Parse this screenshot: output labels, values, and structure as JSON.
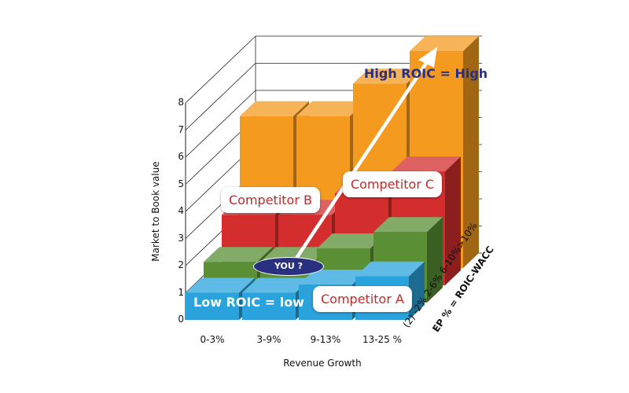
{
  "chart_data": {
    "type": "bar",
    "subtype": "3d-stacked-rows",
    "xlabel": "Revenue Growth",
    "ylabel": "Market to Book value",
    "zlabel": "EP % = ROIC-WACC",
    "categories": [
      "0-3%",
      "3-9%",
      "9-13%",
      "13-25 %"
    ],
    "depth_categories": [
      "(2) -2%",
      "2-6%",
      "6-10%",
      ">10%"
    ],
    "y_ticks": [
      "0",
      "1",
      "2",
      "3",
      "4",
      "5",
      "6",
      "7",
      "8"
    ],
    "ylim": [
      0,
      8
    ],
    "series": [
      {
        "name": "(2) -2%",
        "values": [
          1.0,
          1.0,
          1.3,
          1.6
        ]
      },
      {
        "name": "2-6%",
        "values": [
          1.5,
          1.5,
          2.0,
          2.6
        ]
      },
      {
        "name": "6-10%",
        "values": [
          2.6,
          2.6,
          3.4,
          4.2
        ]
      },
      {
        "name": ">10%",
        "values": [
          5.6,
          5.6,
          6.8,
          8.0
        ]
      }
    ],
    "annotations": {
      "low": "Low ROIC = low",
      "high": "High ROIC = High",
      "you": "YOU ?",
      "competitor_a": "Competitor A",
      "competitor_b": "Competitor B",
      "competitor_c": "Competitor C"
    },
    "colors": {
      "row1": "#2aa3dc",
      "row2": "#5a8f35",
      "row3": "#d42d2d",
      "row4": "#f39a1f",
      "callout_text": "#c62828",
      "high_text": "#2a3080",
      "you_badge": "#2a3080"
    }
  }
}
